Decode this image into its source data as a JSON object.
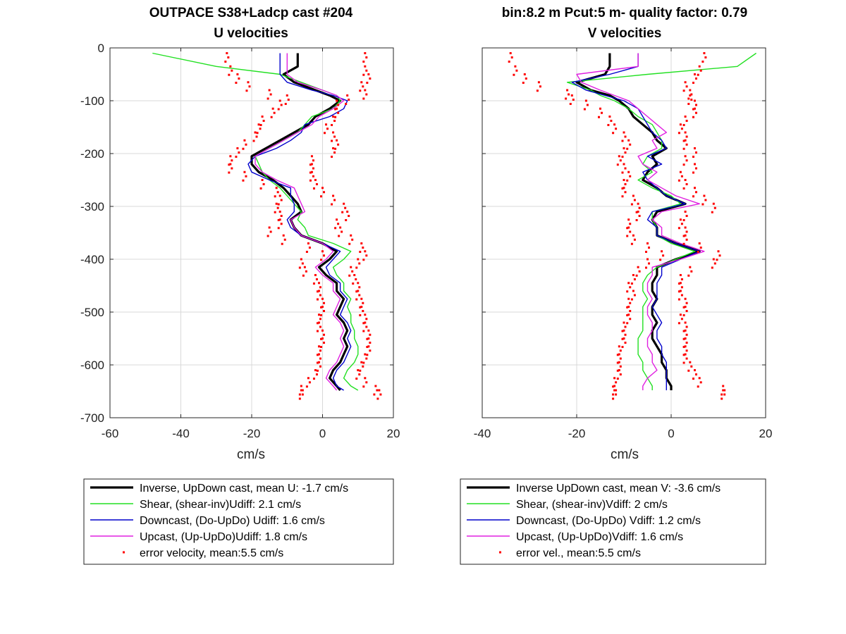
{
  "chart_data": [
    {
      "type": "line",
      "title": "OUTPACE S38+Ladcp cast #204",
      "subtitle": "U velocities",
      "xlabel": "cm/s",
      "ylabel": "",
      "xlim": [
        -60,
        20
      ],
      "ylim": [
        -700,
        0
      ],
      "xticks": [
        "-60",
        "-40",
        "-20",
        "0",
        "20"
      ],
      "yticks": [
        "0",
        "-100",
        "-200",
        "-300",
        "-400",
        "-500",
        "-600",
        "-700"
      ],
      "grid": true,
      "legend_position": "below",
      "depth": [
        -10,
        -35,
        -50,
        -65,
        -80,
        -90,
        -100,
        -115,
        -130,
        -145,
        -160,
        -175,
        -190,
        -205,
        -220,
        -235,
        -250,
        -265,
        -280,
        -295,
        -310,
        -325,
        -340,
        -355,
        -370,
        -385,
        -400,
        -415,
        -430,
        -445,
        -460,
        -475,
        -490,
        -505,
        -520,
        -535,
        -550,
        -565,
        -580,
        -595,
        -610,
        -625,
        -640,
        -648
      ],
      "series": [
        {
          "name": "Inverse, UpDown cast, mean U:  -1.7 cm/s",
          "color": "#000000",
          "width": 3.2,
          "values": [
            -7,
            -7,
            -11,
            -8,
            -2,
            2,
            5,
            2,
            -2,
            -4,
            -8,
            -12,
            -16,
            -20,
            -20,
            -18,
            -14,
            -11,
            -9,
            -7,
            -6,
            -9,
            -8,
            -6,
            0,
            4,
            2,
            -1,
            1,
            4,
            4,
            6,
            5,
            4,
            6,
            7,
            6,
            7,
            6,
            5,
            3,
            2,
            4,
            5
          ]
        },
        {
          "name": "Shear, (shear-inv)Udiff:  2.1 cm/s",
          "color": "#22e022",
          "width": 1.4,
          "values": [
            -48,
            -30,
            -12,
            -6,
            0,
            4,
            5,
            3,
            -3,
            -5,
            -7,
            -11,
            -15,
            -19,
            -18,
            -17,
            -15,
            -12,
            -10,
            -8,
            -6,
            -7,
            -5,
            -4,
            3,
            8,
            6,
            3,
            4,
            6,
            6,
            8,
            7,
            8,
            8,
            9,
            9,
            10,
            10,
            9,
            7,
            6,
            8,
            10
          ]
        },
        {
          "name": "Downcast, (Do-UpDo) Udiff:  1.6 cm/s",
          "color": "#0000cc",
          "width": 1.4,
          "values": [
            -12,
            -12,
            -12,
            -10,
            -3,
            3,
            7,
            6,
            2,
            -5,
            -6,
            -9,
            -13,
            -19,
            -21,
            -20,
            -15,
            -9,
            -9,
            -8,
            -8,
            -10,
            -9,
            -6,
            0,
            5,
            3,
            1,
            2,
            5,
            5,
            7,
            6,
            5,
            7,
            8,
            7,
            8,
            7,
            6,
            4,
            3,
            4,
            6
          ]
        },
        {
          "name": "Upcast, (Up-UpDo)Udiff:  1.8 cm/s",
          "color": "#e020e0",
          "width": 1.4,
          "values": [
            -10,
            -10,
            -10,
            -7,
            0,
            4,
            6,
            3,
            -1,
            -3,
            -7,
            -11,
            -15,
            -19,
            -19,
            -17,
            -13,
            -8,
            -7,
            -6,
            -5,
            -9,
            -8,
            -6,
            0,
            3,
            1,
            -2,
            0,
            3,
            3,
            5,
            4,
            3,
            5,
            6,
            5,
            6,
            5,
            4,
            2,
            1,
            3,
            4
          ]
        },
        {
          "name": "error velocity, mean:5.5 cm/s",
          "color": "#ff0000",
          "marker": "dots",
          "values": [
            -27,
            -26,
            -24,
            -21,
            -15,
            -10,
            -12,
            -14,
            -17,
            -18,
            -19,
            -22,
            -24,
            -26,
            -26,
            -22,
            -17,
            -13,
            -12,
            -13,
            -12,
            -12,
            -15,
            -11,
            -4,
            0,
            -6,
            -5,
            -2,
            -1,
            -1,
            0,
            0,
            -1,
            -1,
            0,
            0,
            -1,
            -1,
            -1,
            -2,
            -4,
            -6,
            -6
          ],
          "values_right": [
            12,
            12,
            13,
            11,
            12,
            7,
            4,
            4,
            3,
            1,
            3,
            4,
            3,
            -3,
            -3,
            -3,
            -2,
            0,
            3,
            6,
            7,
            4,
            5,
            8,
            11,
            12,
            10,
            8,
            9,
            10,
            10,
            11,
            11,
            12,
            12,
            13,
            13,
            13,
            12,
            11,
            10,
            12,
            15,
            16
          ]
        }
      ]
    },
    {
      "type": "line",
      "title": "bin:8.2 m  Pcut:5 m- quality factor:  0.79",
      "subtitle": "V velocities",
      "xlabel": "cm/s",
      "ylabel": "",
      "xlim": [
        -40,
        20
      ],
      "ylim": [
        -700,
        0
      ],
      "xticks": [
        "-40",
        "-20",
        "0",
        "20"
      ],
      "grid": true,
      "legend_position": "below",
      "depth": [
        -10,
        -35,
        -50,
        -65,
        -80,
        -90,
        -100,
        -115,
        -130,
        -145,
        -160,
        -175,
        -190,
        -205,
        -220,
        -235,
        -250,
        -265,
        -280,
        -295,
        -310,
        -325,
        -340,
        -355,
        -370,
        -385,
        -400,
        -415,
        -430,
        -445,
        -460,
        -475,
        -490,
        -505,
        -520,
        -535,
        -550,
        -565,
        -580,
        -595,
        -610,
        -625,
        -640,
        -648
      ],
      "series": [
        {
          "name": "Inverse UpDown cast, mean V:  -3.6 cm/s",
          "color": "#000000",
          "width": 3.2,
          "values": [
            -13,
            -13,
            -14,
            -20,
            -17,
            -13,
            -11,
            -9,
            -8,
            -6,
            -4,
            -3,
            -1,
            -4,
            -3,
            -5,
            -6,
            -3,
            -1,
            3,
            -3,
            -4,
            -3,
            -3,
            1,
            6,
            1,
            -3,
            -3,
            -4,
            -4,
            -3,
            -4,
            -4,
            -3,
            -4,
            -4,
            -3,
            -2,
            -2,
            -1,
            -1,
            0,
            0
          ]
        },
        {
          "name": "Shear, (shear-inv)Vdiff:  2 cm/s",
          "color": "#22e022",
          "width": 1.4,
          "values": [
            18,
            14,
            -5,
            -22,
            -17,
            -15,
            -12,
            -9,
            -7,
            -4,
            -3,
            -2,
            -2,
            -5,
            -6,
            -4,
            -7,
            -4,
            0,
            2,
            -4,
            -4,
            -3,
            -3,
            0,
            5,
            1,
            -3,
            -5,
            -6,
            -6,
            -5,
            -6,
            -6,
            -6,
            -6,
            -7,
            -7,
            -7,
            -6,
            -6,
            -5,
            -4,
            -4
          ]
        },
        {
          "name": "Downcast, (Do-UpDo) Vdiff:  1.2 cm/s",
          "color": "#0000cc",
          "width": 1.4,
          "values": [
            -7,
            -7,
            -13,
            -21,
            -18,
            -14,
            -10,
            -7,
            -6,
            -5,
            -4,
            -2,
            -1,
            -5,
            -2,
            -6,
            -5,
            -3,
            -1,
            3,
            -4,
            -5,
            -3,
            -3,
            1,
            6,
            2,
            -2,
            -2,
            -3,
            -3,
            -3,
            -4,
            -3,
            -2,
            -3,
            -3,
            -2,
            -2,
            -1,
            -1,
            -1,
            -1,
            -1
          ]
        },
        {
          "name": "Upcast, (Up-UpDo)Vdiff:  1.6 cm/s",
          "color": "#e020e0",
          "width": 1.4,
          "values": [
            -7,
            -7,
            -20,
            -19,
            -15,
            -12,
            -9,
            -7,
            -5,
            -3,
            -1,
            -4,
            -3,
            -7,
            -6,
            -3,
            -5,
            -2,
            1,
            6,
            -2,
            -4,
            -2,
            -2,
            2,
            7,
            2,
            -4,
            -4,
            -5,
            -5,
            -4,
            -5,
            -5,
            -4,
            -4,
            -5,
            -5,
            -4,
            -4,
            -3,
            -5,
            -6,
            -6
          ]
        },
        {
          "name": "error vel., mean:5.5 cm/s",
          "color": "#ff0000",
          "marker": "dots",
          "values": [
            -34,
            -33,
            -31,
            -28,
            -22,
            -21,
            -18,
            -15,
            -13,
            -12,
            -10,
            -9,
            -10,
            -11,
            -10,
            -9,
            -10,
            -10,
            -8,
            -7,
            -7,
            -9,
            -9,
            -8,
            -5,
            -2,
            -5,
            -7,
            -8,
            -9,
            -8,
            -9,
            -9,
            -9,
            -10,
            -10,
            -10,
            -11,
            -11,
            -11,
            -11,
            -12,
            -12,
            -12
          ],
          "values_right": [
            7,
            6,
            5,
            3,
            4,
            4,
            5,
            5,
            3,
            2,
            3,
            3,
            5,
            3,
            5,
            2,
            3,
            5,
            7,
            9,
            3,
            2,
            3,
            3,
            6,
            10,
            9,
            4,
            2,
            2,
            2,
            3,
            3,
            2,
            3,
            3,
            3,
            3,
            3,
            4,
            5,
            6,
            11,
            11
          ]
        }
      ]
    }
  ]
}
